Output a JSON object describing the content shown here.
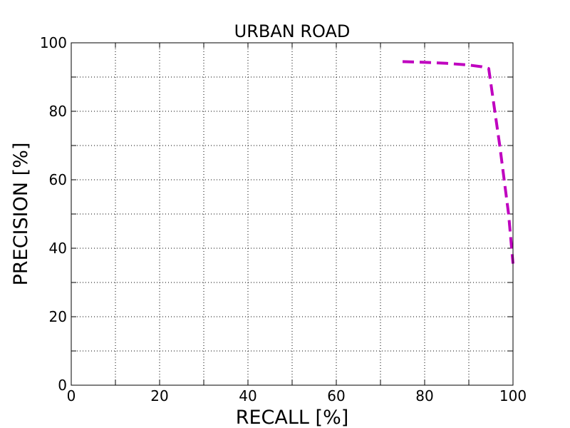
{
  "chart_data": {
    "type": "line",
    "title": "URBAN ROAD",
    "xlabel": "RECALL [%]",
    "ylabel": "PRECISION [%]",
    "xlim": [
      0,
      100
    ],
    "ylim": [
      0,
      100
    ],
    "x_ticks": [
      0,
      20,
      40,
      60,
      80,
      100
    ],
    "y_ticks": [
      0,
      20,
      40,
      60,
      80,
      100
    ],
    "x_minor_grid": [
      10,
      30,
      50,
      70,
      90
    ],
    "y_minor_grid": [
      10,
      30,
      50,
      70,
      90
    ],
    "grid": true,
    "grid_style": "dotted",
    "series": [
      {
        "color": "#bf00bf",
        "line_style": "dashed",
        "x": [
          75,
          80,
          85,
          90,
          93,
          94.5,
          95,
          97,
          99,
          100
        ],
        "y": [
          94.5,
          94.3,
          94.0,
          93.5,
          93.0,
          92.5,
          88,
          70,
          50,
          35.5
        ]
      }
    ]
  }
}
